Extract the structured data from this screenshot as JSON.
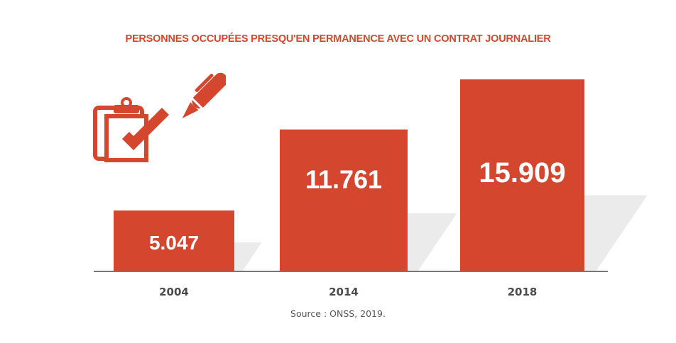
{
  "chart_data": {
    "type": "bar",
    "title": "PERSONNES OCCUPÉES PRESQU'EN PERMANENCE AVEC UN CONTRAT JOURNALIER",
    "categories": [
      "2004",
      "2014",
      "2018"
    ],
    "values": [
      5047,
      11761,
      15909
    ],
    "data_labels": [
      "5.047",
      "11.761",
      "15.909"
    ],
    "xlabel": "",
    "ylabel": "",
    "ylim": [
      0,
      17000
    ],
    "grid": false,
    "legend": "none",
    "source": "Source : ONSS, 2019."
  },
  "colors": {
    "bar": "#d4472e",
    "shadow": "#ebebeb",
    "axis": "#777777",
    "title": "#d4472e"
  },
  "icon": "clipboard-checkmark-pen-icon"
}
